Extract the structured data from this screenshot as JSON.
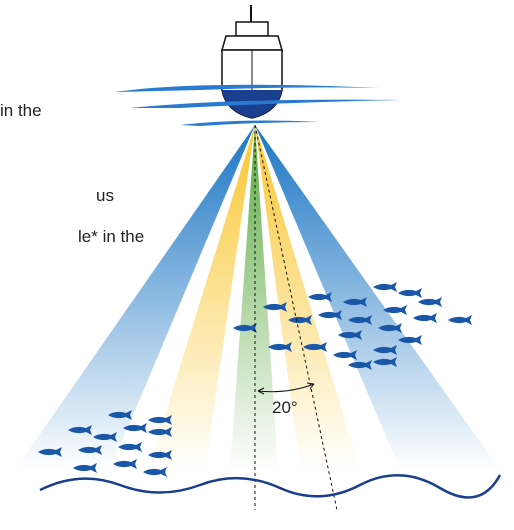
{
  "texts": [
    "in the",
    "us",
    "le* in the"
  ],
  "angle_label": "20°"
}
